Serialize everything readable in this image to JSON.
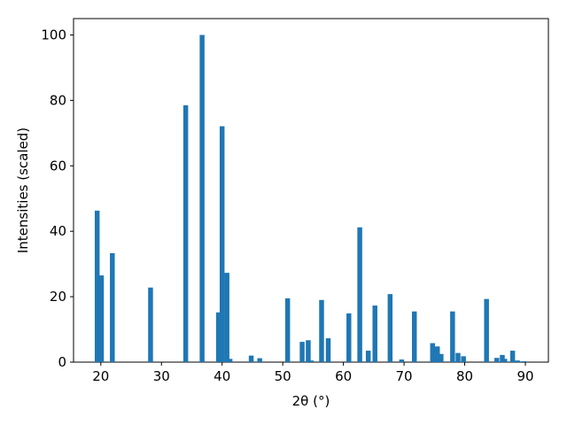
{
  "chart_data": {
    "type": "bar",
    "xlabel": "2θ (°)",
    "ylabel": "Intensities (scaled)",
    "x": [
      19.4,
      20.1,
      21.9,
      28.2,
      34.0,
      36.7,
      39.4,
      40.0,
      40.8,
      41.3,
      44.8,
      46.2,
      50.8,
      53.2,
      54.2,
      54.7,
      56.4,
      57.5,
      60.9,
      62.7,
      64.1,
      65.2,
      67.7,
      69.6,
      71.7,
      74.7,
      75.5,
      76.1,
      78.0,
      78.9,
      79.8,
      83.6,
      85.3,
      86.2,
      86.6,
      87.9,
      88.7,
      89.7
    ],
    "values": [
      46.3,
      26.5,
      33.3,
      22.8,
      78.5,
      100,
      15.2,
      72.1,
      27.3,
      1.0,
      2.0,
      1.2,
      19.5,
      6.2,
      6.7,
      0.5,
      19.0,
      7.3,
      14.9,
      41.2,
      3.5,
      17.3,
      20.8,
      0.8,
      15.5,
      5.8,
      4.8,
      2.5,
      15.5,
      2.8,
      1.8,
      19.3,
      1.3,
      2.2,
      1.0,
      3.5,
      0.5,
      0.3
    ],
    "color": "#1f77b4",
    "xlim": [
      15.5,
      93.8
    ],
    "xticks": [
      20,
      30,
      40,
      50,
      60,
      70,
      80,
      90
    ],
    "ylim": [
      0,
      105
    ],
    "yticks": [
      0,
      20,
      40,
      60,
      80,
      100
    ]
  }
}
